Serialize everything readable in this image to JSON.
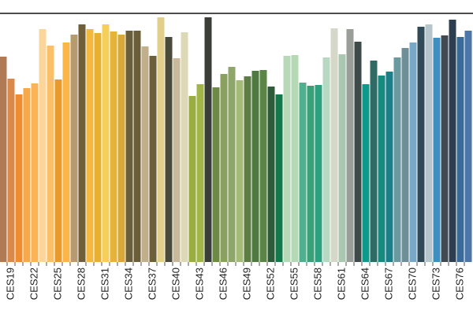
{
  "chart_data": {
    "type": "bar",
    "categories": [
      null,
      "CES19",
      null,
      null,
      "CES22",
      null,
      null,
      "CES25",
      null,
      null,
      "CES28",
      null,
      null,
      "CES31",
      null,
      null,
      "CES34",
      null,
      null,
      "CES37",
      null,
      null,
      "CES40",
      null,
      null,
      "CES43",
      null,
      null,
      "CES46",
      null,
      null,
      "CES49",
      null,
      null,
      "CES52",
      null,
      null,
      "CES55",
      null,
      null,
      "CES58",
      null,
      null,
      "CES61",
      null,
      null,
      "CES64",
      null,
      null,
      "CES67",
      null,
      null,
      "CES70",
      null,
      null,
      "CES73",
      null,
      null,
      "CES76",
      null
    ],
    "values": [
      261,
      233,
      213,
      221,
      227,
      296,
      275,
      232,
      279,
      289,
      302,
      296,
      291,
      302,
      293,
      289,
      294,
      294,
      274,
      262,
      311,
      286,
      259,
      292,
      211,
      226,
      311,
      222,
      239,
      248,
      231,
      236,
      243,
      244,
      223,
      213,
      262,
      263,
      228,
      224,
      225,
      260,
      297,
      264,
      296,
      280,
      226,
      256,
      237,
      242,
      260,
      272,
      279,
      299,
      302,
      285,
      288,
      308,
      286,
      294
    ],
    "colors": [
      "#b07a55",
      "#d9894a",
      "#f08c30",
      "#f5a94a",
      "#fbb454",
      "#fcd59a",
      "#fbc067",
      "#e89a2c",
      "#fbb64a",
      "#b59a72",
      "#6e5f3a",
      "#f2b840",
      "#e8b030",
      "#f6cf5a",
      "#e4b43a",
      "#d8a838",
      "#6b5f3a",
      "#6a5e38",
      "#c0af8a",
      "#6a603c",
      "#e2cf8a",
      "#4a4a3a",
      "#c8b99a",
      "#ddd8b5",
      "#9aae40",
      "#a2b548",
      "#3a3d38",
      "#6d8a45",
      "#8aa060",
      "#8fa66a",
      "#a4bb78",
      "#5e7d45",
      "#4f7a3f",
      "#5b8545",
      "#2e5c3a",
      "#15784a",
      "#b8d8b8",
      "#b5d8b5",
      "#4fb090",
      "#3aa07a",
      "#2ea080",
      "#b8d8c2",
      "#d5d8c8",
      "#aac8b0",
      "#9a9e98",
      "#3d4a48",
      "#0e9a8a",
      "#2f6b64",
      "#178a80",
      "#1a7f88",
      "#6a9aa0",
      "#6f8f98",
      "#78a8c8",
      "#304a58",
      "#b6c4cc",
      "#3e8fc0",
      "#404a50",
      "#2c3e50",
      "#3a6a9a",
      "#4c76a8"
    ],
    "ylim": [
      0,
      316
    ]
  }
}
